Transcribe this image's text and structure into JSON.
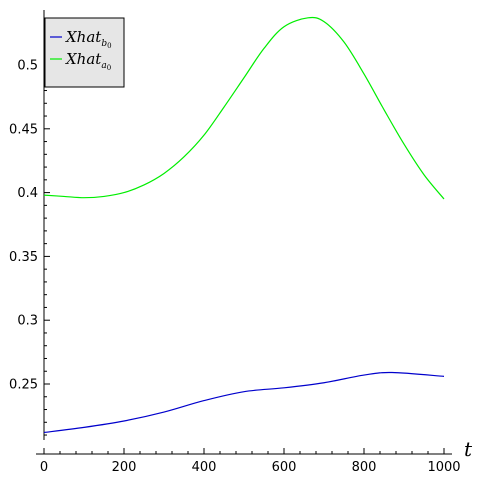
{
  "chart_data": {
    "type": "line",
    "xlabel": "t",
    "ylabel": "",
    "xlim": [
      0,
      1000
    ],
    "ylim": [
      0.2,
      0.54
    ],
    "xticks": [
      0,
      200,
      400,
      600,
      800,
      1000
    ],
    "yticks": [
      0.25,
      0.3,
      0.35,
      0.4,
      0.45,
      0.5
    ],
    "ytick_labels": [
      "0.25",
      "0.3",
      "0.35",
      "0.4",
      "0.45",
      "0.5"
    ],
    "grid": false,
    "legend_position": "top-left",
    "series": [
      {
        "legend": {
          "base": "Xhat",
          "sub": "b",
          "subsub": "0"
        },
        "color": "#0000cc",
        "x": [
          0,
          100,
          200,
          300,
          400,
          500,
          600,
          700,
          800,
          870,
          1000
        ],
        "y": [
          0.212,
          0.216,
          0.221,
          0.228,
          0.237,
          0.244,
          0.247,
          0.251,
          0.257,
          0.259,
          0.256
        ]
      },
      {
        "legend": {
          "base": "Xhat",
          "sub": "a",
          "subsub": "0"
        },
        "color": "#00ee00",
        "x": [
          0,
          50,
          100,
          150,
          200,
          250,
          300,
          350,
          400,
          450,
          500,
          550,
          600,
          660,
          700,
          750,
          800,
          850,
          900,
          950,
          1000
        ],
        "y": [
          0.398,
          0.397,
          0.396,
          0.397,
          0.4,
          0.406,
          0.415,
          0.428,
          0.445,
          0.467,
          0.49,
          0.513,
          0.53,
          0.537,
          0.534,
          0.518,
          0.493,
          0.465,
          0.438,
          0.414,
          0.395
        ]
      }
    ]
  }
}
